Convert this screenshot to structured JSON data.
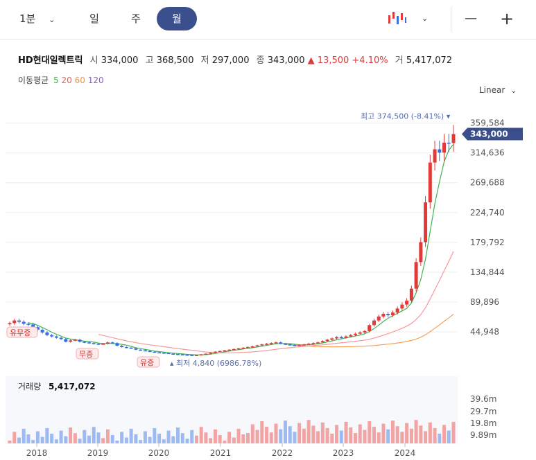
{
  "toolbar": {
    "interval_label": "1분",
    "tabs": [
      "일",
      "주",
      "월"
    ],
    "active_tab": "월",
    "minus_label": "—",
    "plus_label": "+"
  },
  "stock": {
    "name": "HD현대일렉트릭",
    "open_label": "시",
    "open": "334,000",
    "high_label": "고",
    "high": "368,500",
    "low_label": "저",
    "low": "297,000",
    "close_label": "종",
    "close": "343,000",
    "change": "▲ 13,500",
    "change_pct": "+4.10%",
    "volume_label": "거",
    "volume": "5,417,072"
  },
  "ma": {
    "label": "이동평균",
    "periods": [
      "5",
      "20",
      "60",
      "120"
    ],
    "colors": [
      "#3fb34f",
      "#f05a5a",
      "#f5913a",
      "#8a5cd6"
    ]
  },
  "scale_label": "Linear",
  "chart_data": {
    "type": "candlestick",
    "price_ticks": [
      "359,584",
      "314,636",
      "269,688",
      "224,740",
      "179,792",
      "134,844",
      "89,896",
      "44,948"
    ],
    "price_tick_values": [
      359584,
      314636,
      269688,
      224740,
      179792,
      134844,
      89896,
      44948
    ],
    "current_price_label": "343,000",
    "current_price": 343000,
    "max_annotation": "최고 374,500 (-8.41%)",
    "max_value": 374500,
    "min_annotation": "최저 4,840 (6986.78%)",
    "min_value": 4840,
    "x_ticks": [
      "2018",
      "2019",
      "2020",
      "2021",
      "2022",
      "2023",
      "2024"
    ],
    "events": [
      "유무증",
      "무증",
      "유증"
    ],
    "volume_title": "거래량",
    "volume_value": "5,417,072",
    "volume_ticks": [
      "39.6m",
      "29.7m",
      "19.8m",
      "9.89m"
    ],
    "volume_tick_values": [
      39.6,
      29.7,
      19.8,
      9.89
    ],
    "monthly_closes": [
      58000,
      62000,
      60000,
      57000,
      56000,
      52000,
      48000,
      44000,
      40000,
      38000,
      36000,
      34000,
      30000,
      32000,
      33000,
      30000,
      29000,
      28000,
      27000,
      26000,
      27000,
      29000,
      28000,
      24000,
      22000,
      21000,
      20000,
      18000,
      17000,
      16000,
      15000,
      14000,
      13500,
      13000,
      12000,
      11500,
      11000,
      10500,
      10000,
      9500,
      10000,
      11000,
      12000,
      13500,
      15000,
      16000,
      17000,
      18000,
      19000,
      20000,
      21000,
      22000,
      23000,
      24500,
      26000,
      27000,
      28000,
      29000,
      27000,
      26000,
      25000,
      24000,
      25000,
      26000,
      27000,
      28000,
      29000,
      31000,
      33000,
      35000,
      37000,
      36000,
      38000,
      40000,
      42000,
      44000,
      46000,
      55000,
      62000,
      68000,
      72000,
      70000,
      74000,
      80000,
      86000,
      92000,
      110000,
      150000,
      180000,
      240000,
      300000,
      320000,
      315000,
      330000,
      329500,
      343000
    ]
  }
}
